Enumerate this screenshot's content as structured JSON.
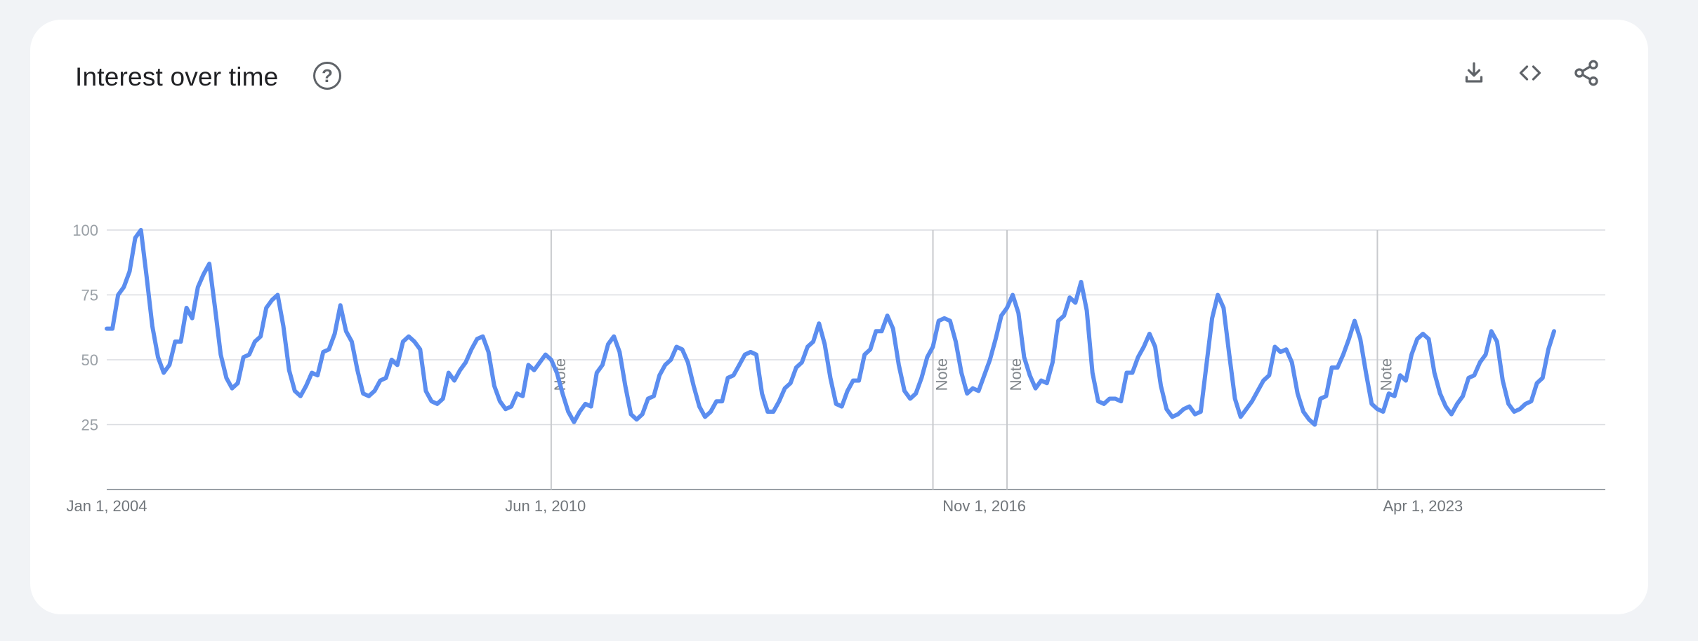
{
  "card": {
    "title": "Interest over time",
    "help_icon": "question-circle-icon",
    "tools": [
      {
        "name": "download-icon",
        "label": "Download CSV"
      },
      {
        "name": "embed-icon",
        "label": "Embed"
      },
      {
        "name": "share-icon",
        "label": "Share"
      }
    ]
  },
  "chart_data": {
    "type": "line",
    "title": "Interest over time",
    "xlabel": "",
    "ylabel": "",
    "ylim": [
      0,
      100
    ],
    "y_ticks": [
      25,
      50,
      75,
      100
    ],
    "x_tick_labels": [
      "Jan 1, 2004",
      "Jun 1, 2010",
      "Nov 1, 2016",
      "Apr 1, 2023"
    ],
    "x_tick_month_index": [
      0,
      77,
      154,
      231
    ],
    "x_range_months": [
      0,
      263
    ],
    "grid": true,
    "line_color": "#5b8def",
    "notes": [
      {
        "label": "Note",
        "month_index": 78
      },
      {
        "label": "Note",
        "month_index": 145
      },
      {
        "label": "Note",
        "month_index": 158
      },
      {
        "label": "Note",
        "month_index": 223
      }
    ],
    "series": [
      {
        "start": "2004-01",
        "frequency": "monthly",
        "values": [
          62,
          62,
          75,
          78,
          84,
          97,
          100,
          82,
          63,
          51,
          45,
          48,
          57,
          57,
          70,
          66,
          78,
          83,
          87,
          70,
          52,
          43,
          39,
          41,
          51,
          52,
          57,
          59,
          70,
          73,
          75,
          63,
          46,
          38,
          36,
          40,
          45,
          44,
          53,
          54,
          60,
          71,
          61,
          57,
          46,
          37,
          36,
          38,
          42,
          43,
          50,
          48,
          57,
          59,
          57,
          54,
          38,
          34,
          33,
          35,
          45,
          42,
          46,
          49,
          54,
          58,
          59,
          53,
          40,
          34,
          31,
          32,
          37,
          36,
          48,
          46,
          49,
          52,
          50,
          45,
          37,
          30,
          26,
          30,
          33,
          32,
          45,
          48,
          56,
          59,
          53,
          40,
          29,
          27,
          29,
          35,
          36,
          44,
          48,
          50,
          55,
          54,
          49,
          40,
          32,
          28,
          30,
          34,
          34,
          43,
          44,
          48,
          52,
          53,
          52,
          37,
          30,
          30,
          34,
          39,
          41,
          47,
          49,
          55,
          57,
          64,
          56,
          43,
          33,
          32,
          38,
          42,
          42,
          52,
          54,
          61,
          61,
          67,
          62,
          48,
          38,
          35,
          37,
          43,
          51,
          55,
          65,
          66,
          65,
          57,
          45,
          37,
          39,
          38,
          44,
          50,
          58,
          67,
          70,
          75,
          68,
          51,
          44,
          39,
          42,
          41,
          49,
          65,
          67,
          74,
          72,
          80,
          69,
          45,
          34,
          33,
          35,
          35,
          34,
          45,
          45,
          51,
          55,
          60,
          55,
          40,
          31,
          28,
          29,
          31,
          32,
          29,
          30,
          48,
          66,
          75,
          70,
          52,
          35,
          28,
          31,
          34,
          38,
          42,
          44,
          55,
          53,
          54,
          49,
          37,
          30,
          27,
          25,
          35,
          36,
          47,
          47,
          52,
          58,
          65,
          58,
          45,
          33,
          31,
          30,
          37,
          36,
          44,
          42,
          52,
          58,
          60,
          58,
          45,
          37,
          32,
          29,
          33,
          36,
          43,
          44,
          49,
          52,
          61,
          57,
          42,
          33,
          30,
          31,
          33,
          34,
          41,
          43,
          54,
          61
        ]
      }
    ]
  }
}
